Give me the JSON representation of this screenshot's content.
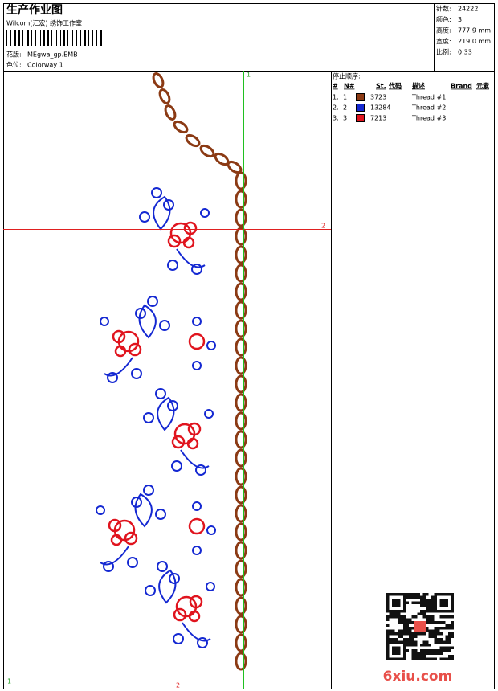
{
  "header": {
    "title": "生产作业图",
    "studio": "Wilcom(汇宏) 绣饰工作室",
    "design_label": "花版:",
    "design": "MEgwa_gp.EMB",
    "colorway_label": "色位:",
    "colorway": "Colorway 1"
  },
  "info": [
    {
      "label": "针数:",
      "value": "24222"
    },
    {
      "label": "颜色:",
      "value": "3"
    },
    {
      "label": "高度:",
      "value": "777.9 mm"
    },
    {
      "label": "宽度:",
      "value": "219.0 mm"
    },
    {
      "label": "比例:",
      "value": "0.33"
    }
  ],
  "stop_sequence": {
    "title": "停止顺序:",
    "columns": [
      "#",
      "N#",
      "St.",
      "代码",
      "描述",
      "Brand",
      "元素"
    ],
    "rows": [
      {
        "seq": "1.",
        "needle": "1",
        "color": "#8b3a14",
        "code": "3723",
        "description": "Thread #1"
      },
      {
        "seq": "2.",
        "needle": "2",
        "color": "#1428d2",
        "code": "13284",
        "description": "Thread #2"
      },
      {
        "seq": "3.",
        "needle": "3",
        "color": "#e0141e",
        "code": "7213",
        "description": "Thread #3"
      }
    ]
  },
  "guides": {
    "top": "1",
    "right": "2",
    "bottom": "1",
    "bottom_center": "2"
  },
  "watermark": "6xiu.com"
}
